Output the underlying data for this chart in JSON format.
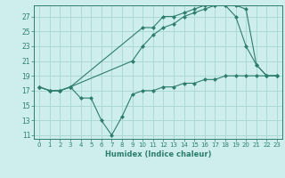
{
  "line1_x": [
    0,
    1,
    2,
    3,
    10,
    11,
    12,
    13,
    14,
    15,
    16,
    17,
    18,
    19,
    20,
    21,
    22,
    23
  ],
  "line1_y": [
    17.5,
    17,
    17,
    17.5,
    25.5,
    25.5,
    27,
    27,
    27.5,
    28,
    28.5,
    28.5,
    28.5,
    28.5,
    28,
    20.5,
    19,
    19
  ],
  "line2_x": [
    0,
    1,
    2,
    3,
    9,
    10,
    11,
    12,
    13,
    14,
    15,
    16,
    17,
    18,
    19,
    20,
    21,
    22,
    23
  ],
  "line2_y": [
    17.5,
    17,
    17,
    17.5,
    21,
    23,
    24.5,
    25.5,
    26,
    27,
    27.5,
    28,
    28.5,
    28.5,
    27,
    23,
    20.5,
    19,
    19
  ],
  "line3_x": [
    0,
    1,
    2,
    3,
    4,
    5,
    6,
    7,
    8,
    9,
    10,
    11,
    12,
    13,
    14,
    15,
    16,
    17,
    18,
    19,
    20,
    21,
    22,
    23
  ],
  "line3_y": [
    17.5,
    17,
    17,
    17.5,
    16,
    16,
    13,
    11,
    13.5,
    16.5,
    17,
    17,
    17.5,
    17.5,
    18,
    18,
    18.5,
    18.5,
    19,
    19,
    19,
    19,
    19,
    19
  ],
  "color": "#2d7d6e",
  "bg_color": "#cdeeed",
  "grid_color": "#aed8d5",
  "xlabel": "Humidex (Indice chaleur)",
  "xticks": [
    0,
    1,
    2,
    3,
    4,
    5,
    6,
    7,
    8,
    9,
    10,
    11,
    12,
    13,
    14,
    15,
    16,
    17,
    18,
    19,
    20,
    21,
    22,
    23
  ],
  "yticks": [
    11,
    13,
    15,
    17,
    19,
    21,
    23,
    25,
    27
  ],
  "ylim": [
    10.5,
    28.5
  ],
  "xlim": [
    -0.5,
    23.5
  ]
}
